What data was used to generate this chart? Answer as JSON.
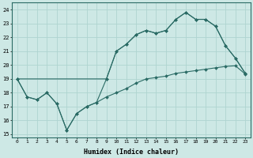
{
  "xlabel": "Humidex (Indice chaleur)",
  "background_color": "#cde8e5",
  "grid_color": "#afd4d0",
  "line_color": "#2a6b65",
  "xlim": [
    -0.5,
    23.5
  ],
  "ylim": [
    14.8,
    24.5
  ],
  "yticks": [
    15,
    16,
    17,
    18,
    19,
    20,
    21,
    22,
    23,
    24
  ],
  "xticks": [
    0,
    1,
    2,
    3,
    4,
    5,
    6,
    7,
    8,
    9,
    10,
    11,
    12,
    13,
    14,
    15,
    16,
    17,
    18,
    19,
    20,
    21,
    22,
    23
  ],
  "line1_x": [
    0,
    1,
    2,
    3,
    4,
    5,
    6,
    7,
    8,
    9,
    10,
    11,
    12,
    13,
    14,
    15,
    16,
    17,
    18,
    19,
    20,
    21,
    22,
    23
  ],
  "line1_y": [
    19.0,
    17.7,
    17.5,
    18.0,
    17.2,
    15.3,
    16.5,
    17.0,
    17.3,
    17.7,
    18.0,
    18.3,
    18.7,
    19.0,
    19.1,
    19.2,
    19.4,
    19.5,
    19.6,
    19.7,
    19.8,
    19.9,
    19.95,
    19.35
  ],
  "line2_x": [
    0,
    1,
    2,
    3,
    4,
    5,
    6,
    7,
    8,
    9,
    10,
    11,
    12,
    13,
    14,
    15,
    16,
    17,
    18,
    19,
    20,
    21,
    22,
    23
  ],
  "line2_y": [
    19.0,
    17.7,
    17.5,
    18.0,
    17.2,
    15.3,
    16.5,
    17.0,
    17.3,
    19.0,
    21.0,
    21.5,
    22.2,
    22.5,
    22.3,
    22.5,
    23.3,
    23.8,
    23.3,
    23.3,
    22.8,
    21.4,
    20.5,
    19.4
  ],
  "line3_x": [
    0,
    9,
    10,
    11,
    12,
    13,
    14,
    15,
    16,
    17,
    18,
    19,
    20,
    21,
    22,
    23
  ],
  "line3_y": [
    19.0,
    19.0,
    21.0,
    21.5,
    22.2,
    22.5,
    22.3,
    22.5,
    23.3,
    23.8,
    23.3,
    23.3,
    22.8,
    21.4,
    20.5,
    19.4
  ]
}
